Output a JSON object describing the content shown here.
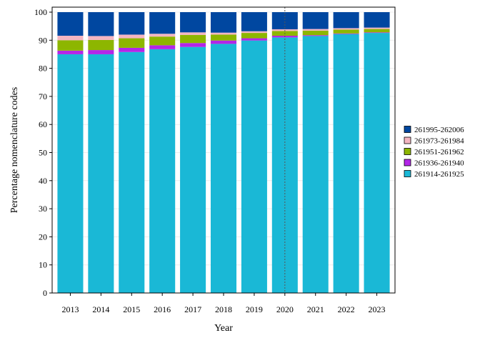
{
  "chart_data": {
    "type": "bar",
    "stacked": true,
    "title": "",
    "xlabel": "Year",
    "ylabel": "Percentage nomenclature codes",
    "ylim": [
      0,
      100
    ],
    "yticks": [
      0,
      10,
      20,
      30,
      40,
      50,
      60,
      70,
      80,
      90,
      100
    ],
    "grid": true,
    "legend_position": "right",
    "reference_line_x": "2020",
    "categories": [
      "2013",
      "2014",
      "2015",
      "2016",
      "2017",
      "2018",
      "2019",
      "2020",
      "2021",
      "2022",
      "2023"
    ],
    "series": [
      {
        "name": "261914-261925",
        "color": "#1ab8d6",
        "values": [
          85.0,
          85.0,
          85.8,
          86.8,
          87.6,
          88.7,
          89.9,
          91.0,
          91.5,
          92.2,
          92.6
        ]
      },
      {
        "name": "261936-261940",
        "color": "#b326e8",
        "values": [
          1.3,
          1.5,
          1.5,
          1.4,
          1.4,
          1.2,
          0.8,
          0.6,
          0.3,
          0.2,
          0.2
        ]
      },
      {
        "name": "261951-261962",
        "color": "#8db600",
        "values": [
          3.7,
          3.6,
          3.4,
          3.1,
          2.9,
          2.1,
          1.9,
          1.7,
          1.6,
          1.4,
          1.2
        ]
      },
      {
        "name": "261973-261984",
        "color": "#f4b6c2",
        "values": [
          1.6,
          1.4,
          1.3,
          1.0,
          0.9,
          0.7,
          0.6,
          0.6,
          0.6,
          0.5,
          0.5
        ]
      },
      {
        "name": "261995-262006",
        "color": "#0047a0",
        "values": [
          8.4,
          8.5,
          8.0,
          7.7,
          7.2,
          7.3,
          6.8,
          6.1,
          6.0,
          5.7,
          5.5
        ]
      }
    ],
    "legend_order": [
      "261995-262006",
      "261973-261984",
      "261951-261962",
      "261936-261940",
      "261914-261925"
    ]
  }
}
